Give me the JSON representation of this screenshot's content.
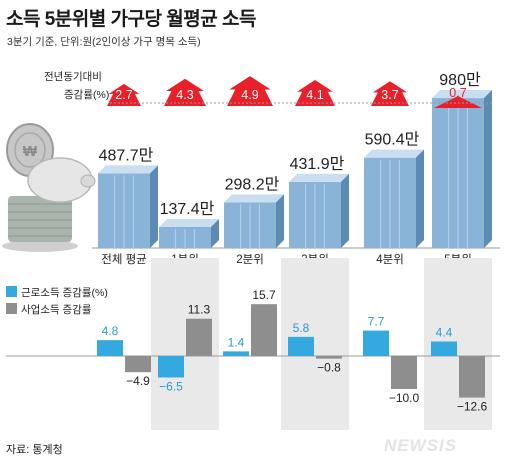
{
  "title": {
    "bold": "소득 5분위별 가구당 월평균 소득"
  },
  "subtitle": "3분기 기준, 단위:원(2인이상 가구 명목 소득)",
  "source": "자료: 통계청",
  "watermark": "NEWSIS",
  "colors": {
    "bar": "#8ab3d8",
    "bar_dark": "#5b8ab5",
    "bar_light": "#c9def0",
    "arrow": "#e8202a",
    "labor": "#33a9e0",
    "business": "#8e8e8e",
    "labor_text": "#2a9ad4",
    "band": "#e9e9e9"
  },
  "icon": "coin-and-piggy-bank-illustration",
  "chart_data": [
    {
      "type": "bar",
      "title": "소득 5분위별 가구당 월평균 소득",
      "categories": [
        "전체 평균",
        "1분위",
        "2분위",
        "3분위",
        "4분위",
        "5분위"
      ],
      "values": [
        487.7,
        137.4,
        298.2,
        431.9,
        590.4,
        980
      ],
      "value_labels": [
        "487.7만",
        "137.4만",
        "298.2만",
        "431.9만",
        "590.4만",
        "980만"
      ],
      "arrow_annotation_label": "전년동기대비\n증감률(%)",
      "yoy_change_pct": [
        2.7,
        4.3,
        4.9,
        4.1,
        3.7,
        0.7
      ]
    },
    {
      "type": "bar",
      "categories": [
        "전체 평균",
        "1분위",
        "2분위",
        "3분위",
        "4분위",
        "5분위"
      ],
      "legend_position": "top-left",
      "series": [
        {
          "name": "근로소득 증감률(%)",
          "values": [
            4.8,
            -6.5,
            1.4,
            5.8,
            7.7,
            4.4
          ]
        },
        {
          "name": "사업소득 증감률",
          "values": [
            -4.9,
            11.3,
            15.7,
            -0.8,
            -10.0,
            -12.6
          ]
        }
      ],
      "labels": [
        [
          "4.8",
          "−6.5",
          "1.4",
          "5.8",
          "7.7",
          "4.4"
        ],
        [
          "−4.9",
          "11.3",
          "15.7",
          "−0.8",
          "−10.0",
          "−12.6"
        ]
      ]
    }
  ]
}
